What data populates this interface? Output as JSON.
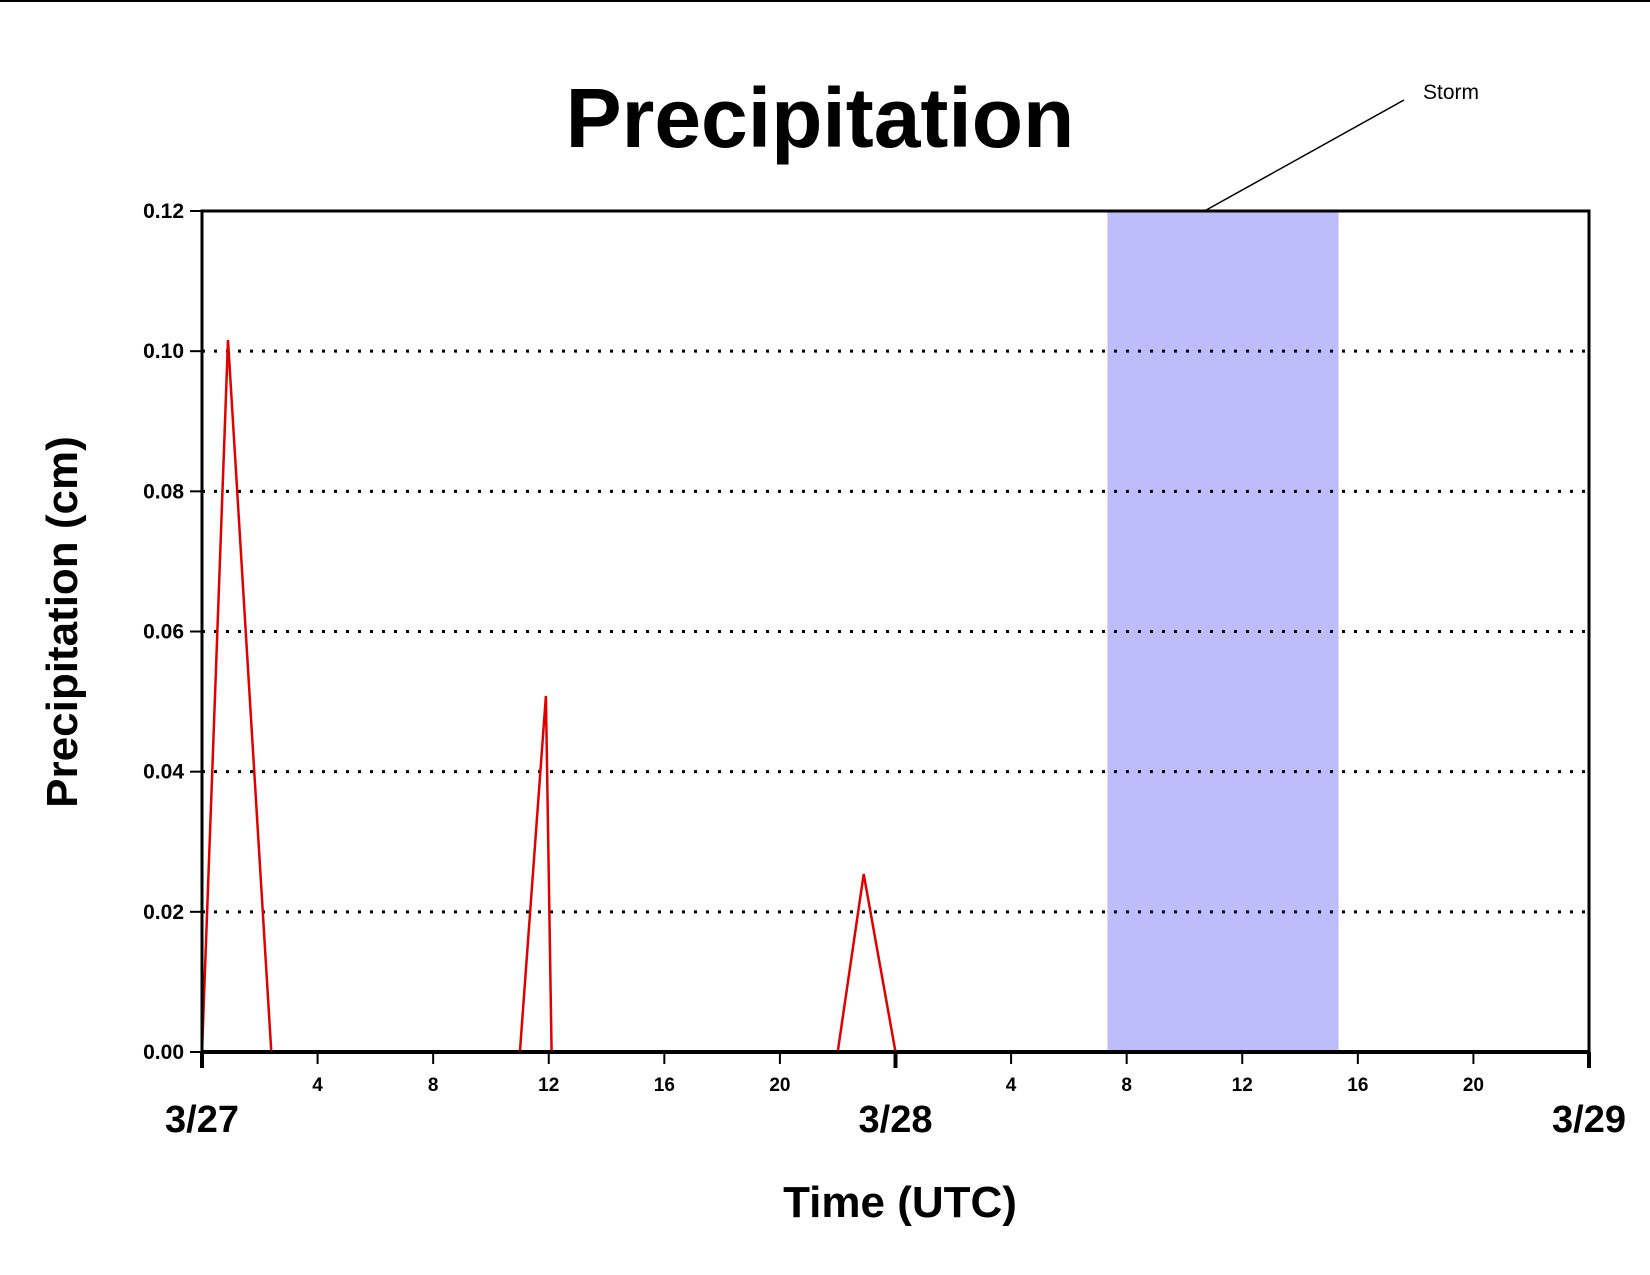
{
  "chart_data": {
    "type": "line",
    "title": "Precipitation",
    "xlabel": "Time (UTC)",
    "ylabel": "Precipitation (cm)",
    "x_unit": "UTC",
    "xlim": [
      "3/27 00:00",
      "3/29 00:00"
    ],
    "ylim": [
      0,
      0.12
    ],
    "y_ticks": [
      "0.00",
      "0.02",
      "0.04",
      "0.06",
      "0.08",
      "0.10",
      "0.12"
    ],
    "y_tick_values": [
      0,
      0.02,
      0.04,
      0.06,
      0.08,
      0.1,
      0.12
    ],
    "grid": "horizontal dotted at 0.02 to 0.10",
    "hour_ticks": [
      {
        "time": "3/27 04:00",
        "label": "4"
      },
      {
        "time": "3/27 08:00",
        "label": "8"
      },
      {
        "time": "3/27 12:00",
        "label": "12"
      },
      {
        "time": "3/27 16:00",
        "label": "16"
      },
      {
        "time": "3/27 20:00",
        "label": "20"
      },
      {
        "time": "3/28 04:00",
        "label": "4"
      },
      {
        "time": "3/28 08:00",
        "label": "8"
      },
      {
        "time": "3/28 12:00",
        "label": "12"
      },
      {
        "time": "3/28 16:00",
        "label": "16"
      },
      {
        "time": "3/28 20:00",
        "label": "20"
      }
    ],
    "date_ticks": [
      {
        "time": "3/27 00:00",
        "label": "3/27"
      },
      {
        "time": "3/28 00:00",
        "label": "3/28"
      },
      {
        "time": "3/29 00:00",
        "label": "3/29"
      }
    ],
    "series": [
      {
        "color": "#e00000",
        "points": [
          {
            "x": "3/27 00:00",
            "y": 0
          },
          {
            "x": "3/27 00:54",
            "y": 0.1016
          },
          {
            "x": "3/27 02:24",
            "y": 0
          },
          {
            "x": "3/27 11:00",
            "y": 0
          },
          {
            "x": "3/27 11:54",
            "y": 0.0508
          },
          {
            "x": "3/27 12:06",
            "y": 0
          },
          {
            "x": "3/27 22:00",
            "y": 0
          },
          {
            "x": "3/27 22:54",
            "y": 0.0254
          },
          {
            "x": "3/28 00:00",
            "y": 0
          },
          {
            "x": "3/29 00:00",
            "y": 0
          }
        ]
      }
    ],
    "shaded_regions": [
      {
        "label": "Storm",
        "x_start": "3/28 07:20",
        "x_end": "3/28 15:20",
        "color": "#bdbdfb"
      }
    ]
  }
}
